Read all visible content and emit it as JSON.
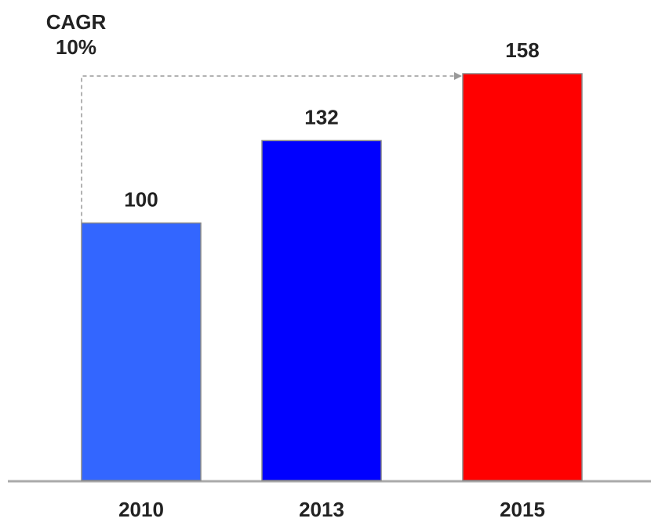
{
  "chart_data": {
    "type": "bar",
    "annotations": [
      "CAGR",
      "10%"
    ],
    "categories": [
      "2010",
      "2013",
      "2015"
    ],
    "values": [
      100,
      132,
      158
    ],
    "colors": [
      "#3366ff",
      "#0000ff",
      "#ff0000"
    ]
  }
}
